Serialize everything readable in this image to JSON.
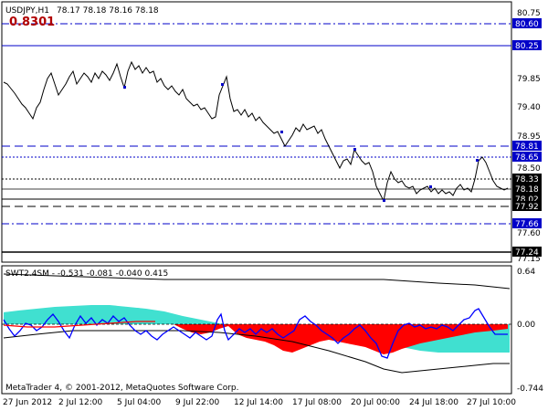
{
  "header": {
    "symbol": "USDJPY,H1",
    "ohlc": "78.17 78.18 78.16 78.18",
    "value_readout": "0.8301"
  },
  "price_axis": {
    "ticks": [
      "80.75",
      "79.85",
      "79.40",
      "78.95",
      "78.50",
      "77.60",
      "77.15"
    ],
    "tags": [
      {
        "label": "80.60",
        "style": "dashdot",
        "color": "#0000c8"
      },
      {
        "label": "80.25",
        "style": "solid",
        "color": "#0000c8"
      },
      {
        "label": "78.81",
        "style": "dashed",
        "color": "#0000c8"
      },
      {
        "label": "78.65",
        "style": "dotted",
        "color": "#0000c8"
      },
      {
        "label": "78.33",
        "style": "dotted",
        "color": "#000000"
      },
      {
        "label": "78.18",
        "style": "solid",
        "color": "#000000"
      },
      {
        "label": "78.02",
        "style": "solid",
        "color": "#000000"
      },
      {
        "label": "77.92",
        "style": "dashed",
        "color": "#000000"
      },
      {
        "label": "77.66",
        "style": "dashdot",
        "color": "#0000c8"
      },
      {
        "label": "77.24",
        "style": "solid",
        "color": "#000000"
      }
    ]
  },
  "indicator": {
    "title": "SWT2.4SM - -0.531 -0.081 -0.040 0.415",
    "ticks": [
      "0.64",
      "0.00",
      "-0.744"
    ],
    "colors": {
      "red": "#ff0000",
      "cyan": "#40e0d0",
      "blue": "#0000ff",
      "black": "#000000"
    }
  },
  "time_axis": {
    "labels": [
      "27 Jun 2012",
      "2 Jul 12:00",
      "5 Jul 04:00",
      "9 Jul 22:00",
      "12 Jul 14:00",
      "17 Jul 08:00",
      "20 Jul 00:00",
      "24 Jul 18:00",
      "27 Jul 10:00"
    ]
  },
  "copyright": "MetaTrader 4, © 2001-2012, MetaQuotes Software Corp."
}
